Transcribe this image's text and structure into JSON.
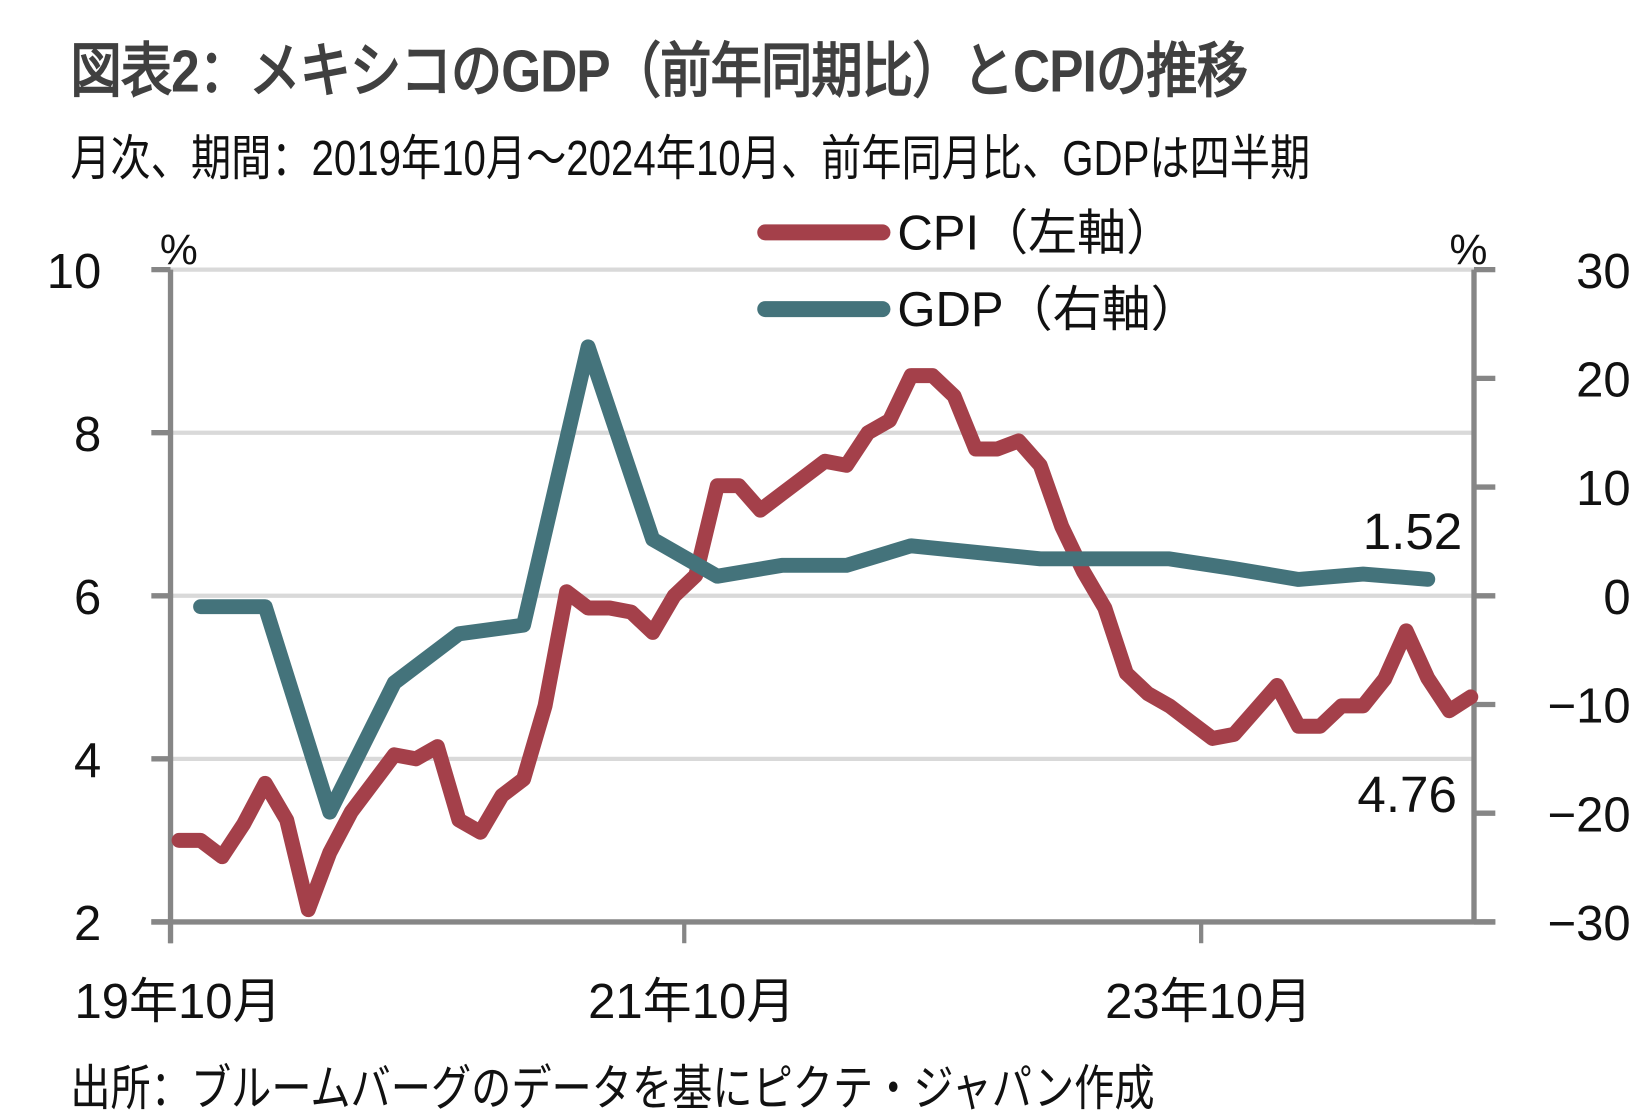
{
  "header": {
    "title": "図表2：メキシコのGDP（前年同期比）とCPIの推移",
    "subtitle": "月次、期間：2019年10月～2024年10月、前年同月比、GDPは四半期"
  },
  "footer": {
    "source": "出所：ブルームバーグのデータを基にピクテ・ジャパン作成"
  },
  "chart_data": {
    "type": "line",
    "title": "図表2：メキシコのGDP（前年同期比）とCPIの推移",
    "subtitle": "月次、期間：2019年10月～2024年10月、前年同月比、GDPは四半期",
    "xlabel": "",
    "ylabel_left": "%",
    "ylabel_right": "%",
    "grid": true,
    "legend_position": "top-center",
    "x_ticks": [
      "19年10月",
      "21年10月",
      "23年10月"
    ],
    "x_tick_months": [
      0,
      24,
      48
    ],
    "x_range_months": [
      0,
      60.5
    ],
    "y_left": {
      "range": [
        2,
        10
      ],
      "ticks": [
        "10",
        "8",
        "6",
        "4",
        "2"
      ],
      "tick_values": [
        10,
        8,
        6,
        4,
        2
      ]
    },
    "y_right": {
      "range": [
        -30,
        30
      ],
      "ticks": [
        "30",
        "20",
        "10",
        "0",
        "−10",
        "−20",
        "−30"
      ],
      "tick_values": [
        30,
        20,
        10,
        0,
        -10,
        -20,
        -30
      ]
    },
    "series": [
      {
        "name": "CPI（左軸）",
        "axis": "left",
        "color": "#A4404A",
        "frequency": "monthly",
        "start": "2019-10",
        "x_months": [
          0,
          1,
          2,
          3,
          4,
          5,
          6,
          7,
          8,
          9,
          10,
          11,
          12,
          13,
          14,
          15,
          16,
          17,
          18,
          19,
          20,
          21,
          22,
          23,
          24,
          25,
          26,
          27,
          28,
          29,
          30,
          31,
          32,
          33,
          34,
          35,
          36,
          37,
          38,
          39,
          40,
          41,
          42,
          43,
          44,
          45,
          46,
          47,
          48,
          49,
          50,
          51,
          52,
          53,
          54,
          55,
          56,
          57,
          58,
          59,
          60
        ],
        "values": [
          3.0,
          3.0,
          2.8,
          3.2,
          3.7,
          3.25,
          2.15,
          2.85,
          3.35,
          3.7,
          4.05,
          4.0,
          4.15,
          3.25,
          3.1,
          3.55,
          3.75,
          4.65,
          6.05,
          5.85,
          5.85,
          5.8,
          5.55,
          6.0,
          6.25,
          7.35,
          7.35,
          7.05,
          7.25,
          7.45,
          7.65,
          7.6,
          8.0,
          8.15,
          8.7,
          8.7,
          8.45,
          7.8,
          7.8,
          7.9,
          7.6,
          6.85,
          6.3,
          5.85,
          5.05,
          4.8,
          4.65,
          4.45,
          4.25,
          4.3,
          4.6,
          4.9,
          4.4,
          4.4,
          4.65,
          4.65,
          4.98,
          5.57,
          4.99,
          4.59,
          4.76
        ]
      },
      {
        "name": "GDP（右軸）",
        "axis": "right",
        "color": "#44737B",
        "frequency": "quarterly",
        "x_months": [
          1,
          4,
          7,
          10,
          13,
          16,
          19,
          22,
          25,
          28,
          31,
          34,
          37,
          40,
          43,
          46,
          49,
          52,
          55,
          58
        ],
        "values": [
          -1.0,
          -1.0,
          -19.9,
          -8.0,
          -3.5,
          -2.7,
          22.9,
          5.2,
          1.8,
          2.8,
          2.8,
          4.6,
          4.0,
          3.4,
          3.4,
          3.4,
          2.5,
          1.5,
          2.0,
          1.52
        ]
      }
    ],
    "annotations": [
      {
        "text": "1.52",
        "series": "GDP（右軸）",
        "note": "latest GDP"
      },
      {
        "text": "4.76",
        "series": "CPI（左軸）",
        "note": "latest CPI"
      }
    ]
  }
}
